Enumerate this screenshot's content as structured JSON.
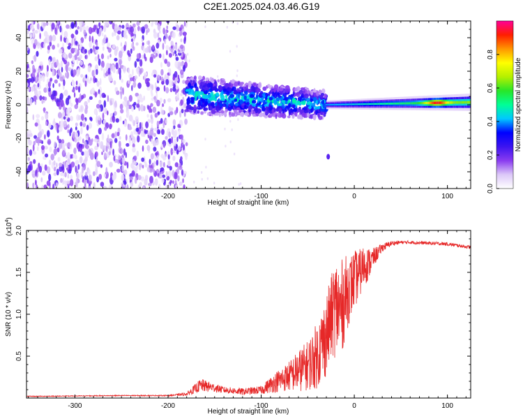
{
  "title": "C2E1.2025.024.03.46.G19",
  "chart_data": [
    {
      "type": "heatmap",
      "xlabel": "Height of straight line (km)",
      "ylabel": "Frequency (Hz)",
      "xlim": [
        -352,
        125
      ],
      "ylim": [
        -50,
        50
      ],
      "xticks": [
        -300,
        -200,
        -100,
        0,
        100
      ],
      "yticks": [
        -40,
        -20,
        0,
        20,
        40
      ],
      "colorbar": {
        "label": "Normalized spectral amplitude",
        "range": [
          0,
          1
        ],
        "ticks": [
          0.0,
          0.2,
          0.4,
          0.6,
          0.8
        ],
        "tick_labels": [
          "0.0",
          "0.2",
          "0.4",
          "0.6",
          "0.8"
        ],
        "colormap": [
          "#ffffff",
          "#dcc8f8",
          "#8a3cf0",
          "#3c14f0",
          "#0000ff",
          "#00c8ff",
          "#00ff96",
          "#28e628",
          "#b4f000",
          "#ffff00",
          "#ff9600",
          "#ff1e00",
          "#ff0096"
        ]
      },
      "features": [
        {
          "name": "noise region",
          "x_range": [
            -352,
            -180
          ],
          "frequency_range": [
            -50,
            50
          ],
          "amplitude": "low scattered"
        },
        {
          "name": "signal band",
          "x_range": [
            -180,
            -30
          ],
          "center_frequency": [
            6,
            0
          ],
          "width_hz": [
            14,
            10
          ],
          "amplitude": "medium"
        },
        {
          "name": "signal line",
          "x_range": [
            -30,
            125
          ],
          "center_frequency": [
            0,
            1.5
          ],
          "width_hz": [
            2,
            4
          ],
          "amplitude": "high",
          "peak_x": 88
        },
        {
          "name": "isolated blob",
          "x": -28,
          "frequency": -31
        }
      ]
    },
    {
      "type": "line",
      "ylabel": "SNR (10 * v/v)",
      "xlabel": "Height of straight line (km)",
      "scale_label": "(x10",
      "scale_exponent": "4",
      "scale_close": ")",
      "xlim": [
        -352,
        125
      ],
      "ylim": [
        0,
        2.0
      ],
      "xticks": [
        -300,
        -200,
        -100,
        0,
        100
      ],
      "yticks": [
        0.5,
        1.0,
        1.5,
        2.0
      ],
      "ytick_labels": [
        "0.5",
        "1.0",
        "1.5",
        "2.0"
      ],
      "line_color": "#e62828",
      "series": [
        {
          "name": "SNR",
          "x": [
            -352,
            -300,
            -250,
            -200,
            -180,
            -165,
            -155,
            -140,
            -120,
            -100,
            -85,
            -70,
            -60,
            -50,
            -40,
            -30,
            -25,
            -20,
            -15,
            -10,
            -5,
            0,
            5,
            10,
            15,
            20,
            30,
            40,
            50,
            60,
            80,
            100,
            125
          ],
          "y": [
            0.02,
            0.025,
            0.03,
            0.03,
            0.05,
            0.16,
            0.14,
            0.1,
            0.08,
            0.1,
            0.2,
            0.28,
            0.35,
            0.42,
            0.55,
            0.8,
            1.0,
            1.15,
            1.1,
            1.25,
            1.35,
            1.45,
            1.5,
            1.6,
            1.62,
            1.68,
            1.8,
            1.85,
            1.86,
            1.86,
            1.85,
            1.84,
            1.8
          ],
          "noise": [
            0.005,
            0.005,
            0.005,
            0.006,
            0.02,
            0.08,
            0.06,
            0.04,
            0.04,
            0.05,
            0.12,
            0.18,
            0.25,
            0.3,
            0.4,
            0.5,
            0.5,
            0.6,
            0.6,
            0.5,
            0.4,
            0.35,
            0.3,
            0.25,
            0.2,
            0.12,
            0.05,
            0.03,
            0.02,
            0.02,
            0.02,
            0.02,
            0.02
          ]
        }
      ]
    }
  ]
}
